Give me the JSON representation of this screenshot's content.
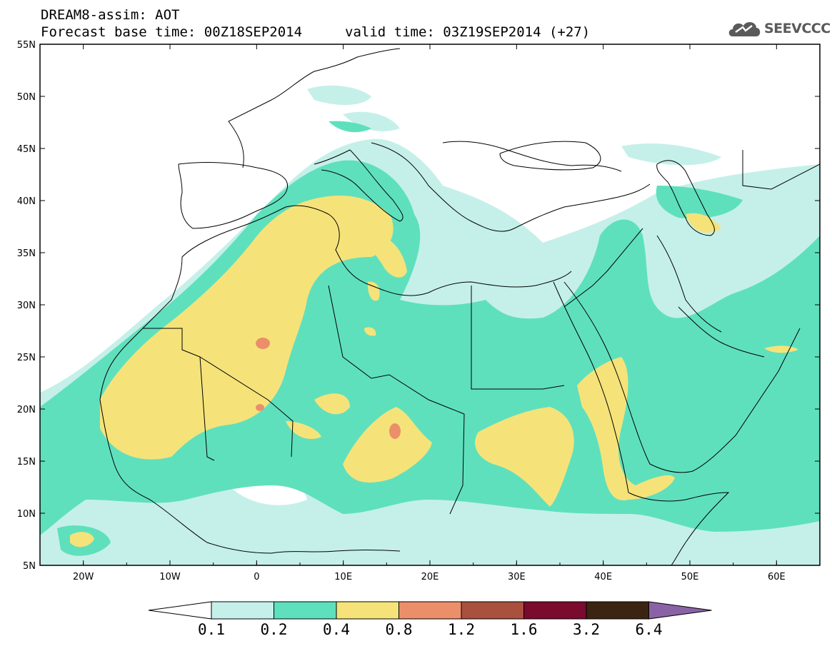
{
  "header": {
    "title": "DREAM8-assim: AOT",
    "base_time": "Forecast base time: 00Z18SEP2014",
    "valid_time": "valid time: 03Z19SEP2014 (+27)"
  },
  "logo": {
    "text": "SEEVCCC",
    "icon": "cloud-logo-icon"
  },
  "map": {
    "lon_range": [
      -25,
      65
    ],
    "lat_range": [
      5,
      55
    ],
    "lat_ticks": [
      "55N",
      "50N",
      "45N",
      "40N",
      "35N",
      "30N",
      "25N",
      "20N",
      "15N",
      "10N",
      "5N"
    ],
    "lon_ticks": [
      "20W",
      "10W",
      "0",
      "10E",
      "20E",
      "30E",
      "40E",
      "50E",
      "60E"
    ]
  },
  "colorbar": {
    "labels": [
      "0.1",
      "0.2",
      "0.4",
      "0.8",
      "1.2",
      "1.6",
      "3.2",
      "6.4"
    ],
    "colors": [
      "#ffffff",
      "#c5f0e9",
      "#5fe0bd",
      "#f5e37a",
      "#eb8f6a",
      "#a9503f",
      "#7a0a2e",
      "#3b2412",
      "#8a63a6"
    ]
  }
}
